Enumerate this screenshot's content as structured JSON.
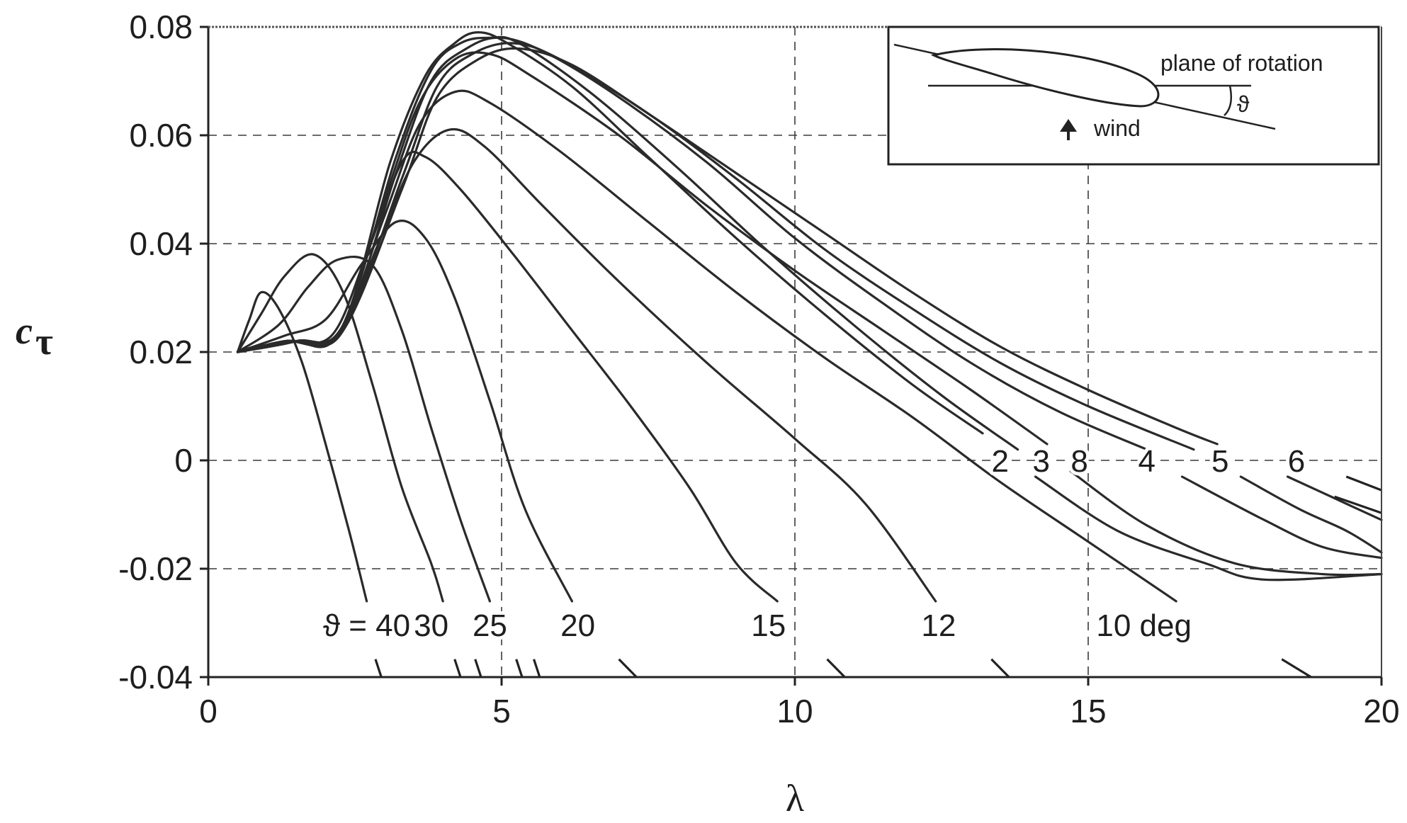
{
  "chart_data": {
    "type": "line",
    "xlabel": "λ",
    "ylabel": "c",
    "ylabel_sub": "τ",
    "xlim": [
      0,
      20
    ],
    "ylim": [
      -0.04,
      0.08
    ],
    "xticks": [
      "0",
      "5",
      "10",
      "15",
      "20"
    ],
    "yticks": [
      "0.08",
      "0.06",
      "0.04",
      "0.02",
      "0",
      "-0.02",
      "-0.04"
    ],
    "grid": true,
    "series": [
      {
        "name": "ϑ = 40",
        "points": [
          [
            0.5,
            0.02
          ],
          [
            0.7,
            0.026
          ],
          [
            0.9,
            0.031
          ],
          [
            1.2,
            0.028
          ],
          [
            1.6,
            0.018
          ],
          [
            2.0,
            0.003
          ],
          [
            2.4,
            -0.013
          ],
          [
            2.7,
            -0.026
          ]
        ]
      },
      {
        "name": "30",
        "points": [
          [
            0.5,
            0.02
          ],
          [
            0.9,
            0.027
          ],
          [
            1.3,
            0.034
          ],
          [
            1.8,
            0.038
          ],
          [
            2.3,
            0.031
          ],
          [
            2.8,
            0.014
          ],
          [
            3.3,
            -0.005
          ],
          [
            3.8,
            -0.019
          ],
          [
            4.0,
            -0.026
          ]
        ]
      },
      {
        "name": "25",
        "points": [
          [
            0.5,
            0.02
          ],
          [
            1.2,
            0.025
          ],
          [
            1.7,
            0.032
          ],
          [
            2.2,
            0.037
          ],
          [
            2.8,
            0.036
          ],
          [
            3.3,
            0.024
          ],
          [
            3.8,
            0.006
          ],
          [
            4.3,
            -0.011
          ],
          [
            4.8,
            -0.026
          ]
        ]
      },
      {
        "name": "20",
        "points": [
          [
            0.5,
            0.02
          ],
          [
            1.3,
            0.023
          ],
          [
            2.0,
            0.026
          ],
          [
            2.6,
            0.036
          ],
          [
            3.2,
            0.044
          ],
          [
            3.7,
            0.041
          ],
          [
            4.2,
            0.03
          ],
          [
            4.8,
            0.011
          ],
          [
            5.4,
            -0.009
          ],
          [
            6.2,
            -0.026
          ]
        ]
      },
      {
        "name": "15",
        "points": [
          [
            0.5,
            0.02
          ],
          [
            1.3,
            0.022
          ],
          [
            2.1,
            0.023
          ],
          [
            2.7,
            0.038
          ],
          [
            3.3,
            0.055
          ],
          [
            3.7,
            0.056
          ],
          [
            4.3,
            0.05
          ],
          [
            5.2,
            0.038
          ],
          [
            6.2,
            0.024
          ],
          [
            7.2,
            0.01
          ],
          [
            8.2,
            -0.005
          ],
          [
            9.0,
            -0.019
          ],
          [
            9.7,
            -0.026
          ]
        ]
      },
      {
        "name": "12",
        "points": [
          [
            0.5,
            0.02
          ],
          [
            1.3,
            0.022
          ],
          [
            2.2,
            0.023
          ],
          [
            2.9,
            0.04
          ],
          [
            3.5,
            0.055
          ],
          [
            4.1,
            0.061
          ],
          [
            4.7,
            0.058
          ],
          [
            5.7,
            0.047
          ],
          [
            7.0,
            0.033
          ],
          [
            8.5,
            0.018
          ],
          [
            10.0,
            0.004
          ],
          [
            11.2,
            -0.008
          ],
          [
            12.4,
            -0.026
          ]
        ]
      },
      {
        "name": "10 deg",
        "points": [
          [
            0.5,
            0.02
          ],
          [
            1.3,
            0.022
          ],
          [
            2.2,
            0.023
          ],
          [
            3.0,
            0.045
          ],
          [
            3.6,
            0.062
          ],
          [
            4.2,
            0.068
          ],
          [
            4.8,
            0.066
          ],
          [
            6.0,
            0.057
          ],
          [
            7.5,
            0.044
          ],
          [
            9.0,
            0.031
          ],
          [
            10.5,
            0.019
          ],
          [
            12.0,
            0.008
          ],
          [
            13.5,
            -0.004
          ],
          [
            15.0,
            -0.015
          ],
          [
            16.5,
            -0.026
          ]
        ]
      },
      {
        "name": "2",
        "points": [
          [
            0.5,
            0.02
          ],
          [
            1.5,
            0.022
          ],
          [
            2.3,
            0.025
          ],
          [
            3.1,
            0.055
          ],
          [
            3.7,
            0.071
          ],
          [
            4.2,
            0.077
          ],
          [
            4.6,
            0.079
          ],
          [
            5.1,
            0.077
          ],
          [
            6.2,
            0.069
          ],
          [
            7.5,
            0.056
          ],
          [
            9.0,
            0.041
          ],
          [
            10.5,
            0.027
          ],
          [
            12.0,
            0.014
          ],
          [
            13.2,
            0.005
          ]
        ]
      },
      {
        "name": "3",
        "points": [
          [
            0.5,
            0.02
          ],
          [
            1.5,
            0.022
          ],
          [
            2.3,
            0.025
          ],
          [
            3.2,
            0.056
          ],
          [
            3.8,
            0.072
          ],
          [
            4.3,
            0.077
          ],
          [
            4.8,
            0.078
          ],
          [
            5.3,
            0.077
          ],
          [
            6.5,
            0.068
          ],
          [
            8.0,
            0.054
          ],
          [
            9.5,
            0.039
          ],
          [
            11.0,
            0.025
          ],
          [
            12.5,
            0.012
          ],
          [
            13.8,
            0.002
          ]
        ],
        "tail": [
          [
            14.1,
            -0.003
          ],
          [
            15.5,
            -0.013
          ],
          [
            17.0,
            -0.019
          ],
          [
            18.0,
            -0.022
          ],
          [
            20.0,
            -0.021
          ]
        ]
      },
      {
        "name": "8",
        "points": [
          [
            0.5,
            0.02
          ],
          [
            1.4,
            0.022
          ],
          [
            2.2,
            0.023
          ],
          [
            3.0,
            0.048
          ],
          [
            3.6,
            0.066
          ],
          [
            4.2,
            0.074
          ],
          [
            4.8,
            0.075
          ],
          [
            5.5,
            0.071
          ],
          [
            7.0,
            0.06
          ],
          [
            8.5,
            0.047
          ],
          [
            10.0,
            0.035
          ],
          [
            11.5,
            0.024
          ],
          [
            13.0,
            0.013
          ],
          [
            14.3,
            0.003
          ]
        ],
        "tail": [
          [
            14.7,
            -0.002
          ],
          [
            16.0,
            -0.012
          ],
          [
            17.5,
            -0.019
          ],
          [
            19.0,
            -0.021
          ],
          [
            20.0,
            -0.021
          ]
        ]
      },
      {
        "name": "4",
        "points": [
          [
            0.5,
            0.02
          ],
          [
            1.5,
            0.022
          ],
          [
            2.3,
            0.024
          ],
          [
            3.2,
            0.053
          ],
          [
            3.8,
            0.07
          ],
          [
            4.4,
            0.076
          ],
          [
            5.0,
            0.078
          ],
          [
            5.8,
            0.075
          ],
          [
            7.0,
            0.067
          ],
          [
            8.5,
            0.055
          ],
          [
            10.0,
            0.041
          ],
          [
            11.5,
            0.029
          ],
          [
            13.0,
            0.018
          ],
          [
            14.5,
            0.009
          ],
          [
            16.0,
            0.002
          ]
        ],
        "tail": [
          [
            16.6,
            -0.003
          ],
          [
            18.0,
            -0.011
          ],
          [
            19.0,
            -0.016
          ],
          [
            20.0,
            -0.018
          ]
        ]
      },
      {
        "name": "5",
        "points": [
          [
            0.5,
            0.02
          ],
          [
            1.5,
            0.022
          ],
          [
            2.3,
            0.024
          ],
          [
            3.3,
            0.052
          ],
          [
            3.9,
            0.069
          ],
          [
            4.5,
            0.075
          ],
          [
            5.2,
            0.077
          ],
          [
            6.0,
            0.074
          ],
          [
            7.5,
            0.064
          ],
          [
            9.0,
            0.052
          ],
          [
            10.5,
            0.039
          ],
          [
            12.0,
            0.028
          ],
          [
            13.5,
            0.018
          ],
          [
            15.0,
            0.01
          ],
          [
            16.8,
            0.002
          ]
        ],
        "tail": [
          [
            17.6,
            -0.003
          ],
          [
            18.6,
            -0.009
          ],
          [
            19.4,
            -0.013
          ],
          [
            20.0,
            -0.017
          ]
        ]
      },
      {
        "name": "6",
        "points": [
          [
            0.5,
            0.02
          ],
          [
            1.5,
            0.022
          ],
          [
            2.3,
            0.024
          ],
          [
            3.3,
            0.05
          ],
          [
            3.9,
            0.067
          ],
          [
            4.6,
            0.074
          ],
          [
            5.3,
            0.076
          ],
          [
            6.2,
            0.073
          ],
          [
            7.5,
            0.064
          ],
          [
            9.0,
            0.053
          ],
          [
            10.5,
            0.042
          ],
          [
            12.0,
            0.031
          ],
          [
            13.5,
            0.021
          ],
          [
            15.0,
            0.013
          ],
          [
            16.5,
            0.006
          ],
          [
            17.2,
            0.003
          ]
        ],
        "tail": [
          [
            18.4,
            -0.003
          ],
          [
            19.2,
            -0.007
          ],
          [
            20.0,
            -0.011
          ]
        ]
      }
    ],
    "stub_segments": [
      [
        [
          2.85,
          -0.0367
        ],
        [
          2.95,
          -0.04
        ]
      ],
      [
        [
          4.2,
          -0.0367
        ],
        [
          4.3,
          -0.04
        ]
      ],
      [
        [
          4.55,
          -0.0367
        ],
        [
          4.65,
          -0.04
        ]
      ],
      [
        [
          5.25,
          -0.0367
        ],
        [
          5.35,
          -0.04
        ]
      ],
      [
        [
          5.55,
          -0.0367
        ],
        [
          5.65,
          -0.04
        ]
      ],
      [
        [
          7.0,
          -0.0367
        ],
        [
          7.3,
          -0.04
        ]
      ],
      [
        [
          10.55,
          -0.0367
        ],
        [
          10.85,
          -0.04
        ]
      ],
      [
        [
          13.35,
          -0.0367
        ],
        [
          13.65,
          -0.04
        ]
      ],
      [
        [
          18.3,
          -0.0367
        ],
        [
          18.8,
          -0.04
        ]
      ],
      [
        [
          19.2,
          -0.0067
        ],
        [
          20.0,
          -0.0097
        ]
      ],
      [
        [
          19.4,
          -0.003
        ],
        [
          20.0,
          -0.0055
        ]
      ]
    ],
    "curve_labels": [
      {
        "text": "ϑ = 40",
        "x": 2.7,
        "y": -0.0303
      },
      {
        "text": "30",
        "x": 3.8,
        "y": -0.0303
      },
      {
        "text": "25",
        "x": 4.8,
        "y": -0.0303
      },
      {
        "text": "20",
        "x": 6.3,
        "y": -0.0303
      },
      {
        "text": "15",
        "x": 9.55,
        "y": -0.0303
      },
      {
        "text": "12",
        "x": 12.45,
        "y": -0.0303
      },
      {
        "text": "10 deg",
        "x": 15.95,
        "y": -0.0303
      },
      {
        "text": "2",
        "x": 13.5,
        "y": 0.0
      },
      {
        "text": "3",
        "x": 14.2,
        "y": 0.0
      },
      {
        "text": "8",
        "x": 14.85,
        "y": 0.0
      },
      {
        "text": "4",
        "x": 16.0,
        "y": 0.0
      },
      {
        "text": "5",
        "x": 17.25,
        "y": 0.0
      },
      {
        "text": "6",
        "x": 18.55,
        "y": 0.0
      }
    ]
  },
  "inset": {
    "plane_label": "plane of rotation",
    "wind_label": "wind",
    "angle_symbol": "ϑ"
  }
}
